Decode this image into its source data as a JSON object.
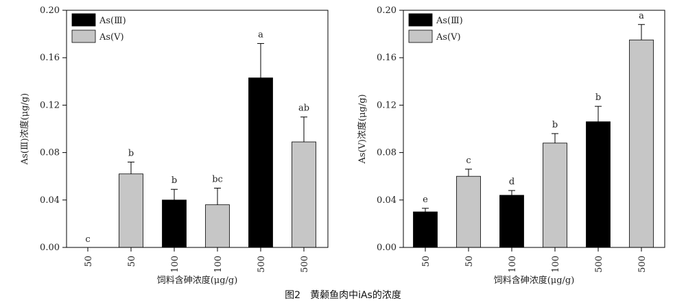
{
  "caption": "图2　黄颡鱼肉中iAs的浓度",
  "colors": {
    "as3": "#000000",
    "as5": "#c6c6c6",
    "axis": "#000000"
  },
  "chart_data": [
    {
      "type": "bar",
      "categories": [
        "50",
        "50",
        "100",
        "100",
        "500",
        "500"
      ],
      "series_index": [
        0,
        1,
        0,
        1,
        0,
        1
      ],
      "series": [
        {
          "name": "As(Ⅲ)",
          "color": "#000000"
        },
        {
          "name": "As(Ⅴ)",
          "color": "#c6c6c6"
        }
      ],
      "values": [
        0.0,
        0.062,
        0.04,
        0.036,
        0.143,
        0.089
      ],
      "errors": [
        0.0,
        0.01,
        0.009,
        0.014,
        0.029,
        0.021
      ],
      "letters": [
        "c",
        "b",
        "b",
        "bc",
        "a",
        "ab"
      ],
      "ylabel": "As(Ⅲ)浓度(μg/g)",
      "xlabel": "饲料含砷浓度(μg/g)",
      "ylim": [
        0,
        0.2
      ],
      "yticks": [
        "0.00",
        "0.04",
        "0.08",
        "0.12",
        "0.16",
        "0.20"
      ],
      "legend": "top-left",
      "grid": false
    },
    {
      "type": "bar",
      "categories": [
        "50",
        "50",
        "100",
        "100",
        "500",
        "500"
      ],
      "series_index": [
        0,
        1,
        0,
        1,
        0,
        1
      ],
      "series": [
        {
          "name": "As(Ⅲ)",
          "color": "#000000"
        },
        {
          "name": "As(Ⅴ)",
          "color": "#c6c6c6"
        }
      ],
      "values": [
        0.03,
        0.06,
        0.044,
        0.088,
        0.106,
        0.175
      ],
      "errors": [
        0.003,
        0.006,
        0.004,
        0.008,
        0.013,
        0.013
      ],
      "letters": [
        "e",
        "c",
        "d",
        "b",
        "b",
        "a"
      ],
      "ylabel": "As(Ⅴ)浓度(μg/g)",
      "xlabel": "饲料含砷浓度(μg/g)",
      "ylim": [
        0,
        0.2
      ],
      "yticks": [
        "0.00",
        "0.04",
        "0.08",
        "0.12",
        "0.16",
        "0.20"
      ],
      "legend": "top-left",
      "grid": false
    }
  ]
}
